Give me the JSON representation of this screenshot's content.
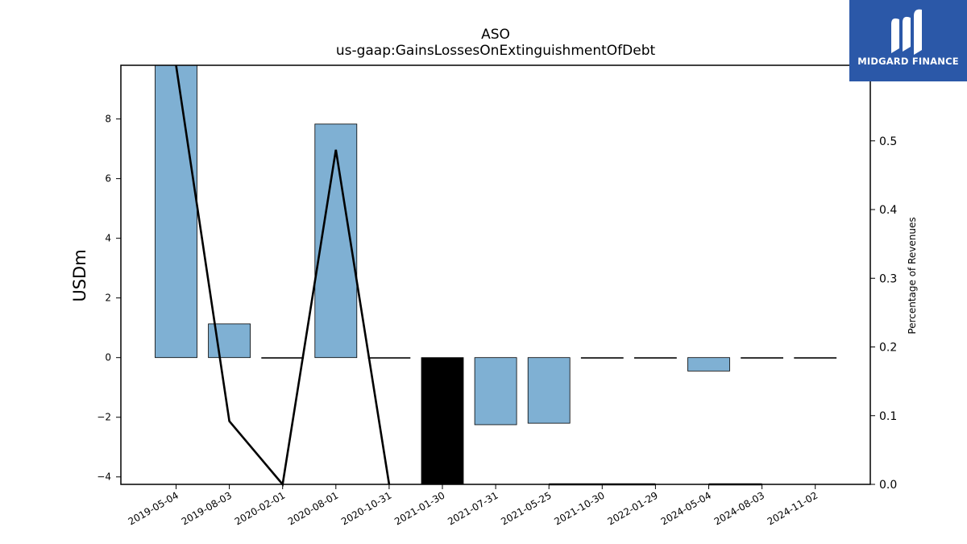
{
  "chart_data": {
    "type": "bar",
    "title": "ASO",
    "subtitle": "us-gaap:GainsLossesOnExtinguishmentOfDebt",
    "ylabel": "USDm",
    "y2label": "Percentage of Revenues",
    "categories": [
      "2019-05-04",
      "2019-08-03",
      "2020-02-01",
      "2020-08-01",
      "2020-10-31",
      "2021-01-30",
      "2021-07-31",
      "2021-05-25",
      "2021-10-30",
      "2022-01-29",
      "2024-05-04",
      "2024-08-03",
      "2024-11-02"
    ],
    "series": [
      {
        "values": [
          9.8,
          1.13,
          0,
          7.83,
          0,
          -4.3,
          -2.25,
          -2.2,
          0,
          0,
          -0.45,
          0,
          0
        ]
      },
      {
        "values": [
          0.75,
          0.092,
          0.0,
          0.487,
          0.0,
          null,
          null,
          0.0,
          0.0,
          0.0,
          null,
          0.0,
          null
        ]
      }
    ],
    "bar_colors": [
      "#7fb0d3",
      "#7fb0d3",
      "#7fb0d3",
      "#7fb0d3",
      "#7fb0d3",
      "#000000",
      "#7fb0d3",
      "#7fb0d3",
      "#7fb0d3",
      "#7fb0d3",
      "#7fb0d3",
      "#7fb0d3",
      "#7fb0d3"
    ],
    "ylim": [
      -4.25,
      9.8
    ],
    "yticks": [
      -4,
      -2,
      0,
      2,
      4,
      6,
      8
    ],
    "y2lim": [
      0.0,
      0.61
    ],
    "y2ticks": [
      0.0,
      0.1,
      0.2,
      0.3,
      0.4,
      0.5
    ],
    "grid": false
  },
  "logo": {
    "text": "MIDGARD FINANCE",
    "color": "#2b58a8"
  }
}
